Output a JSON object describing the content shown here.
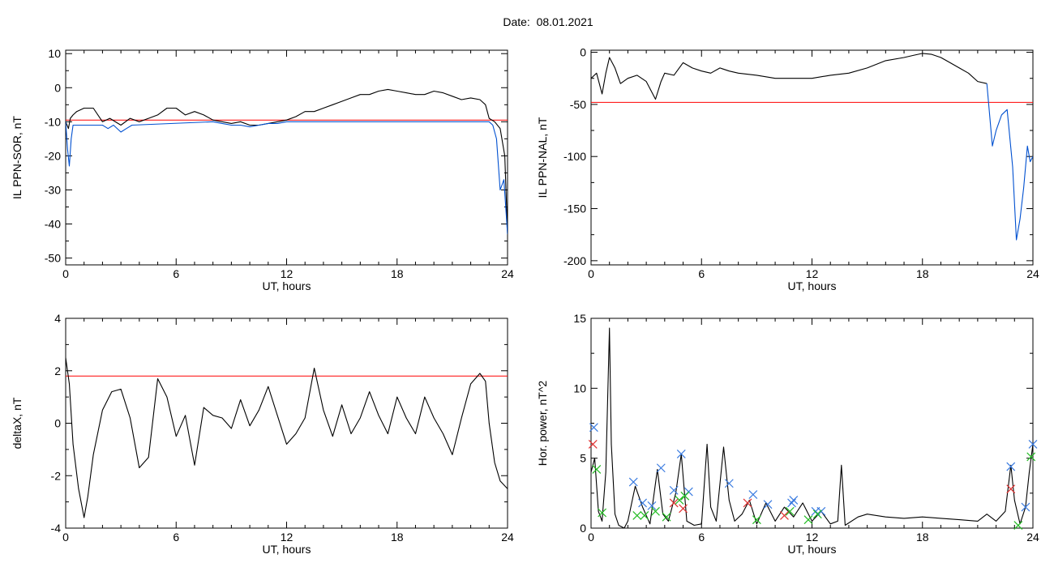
{
  "figure": {
    "title": "Date:  08.01.2021"
  },
  "chart_data": [
    {
      "type": "line",
      "xlabel": "UT, hours",
      "ylabel": "IL PPN-SOR, nT",
      "xlim": [
        0,
        24
      ],
      "ylim": [
        -52,
        11
      ],
      "xticks": [
        0,
        6,
        12,
        18,
        24
      ],
      "yticks": [
        10,
        0,
        -10,
        -20,
        -30,
        -40,
        -50
      ],
      "threshold": {
        "value": -9.5,
        "color": "#ff0000"
      },
      "series": [
        {
          "color": "#000000",
          "x": [
            0,
            0.15,
            0.25,
            0.4,
            0.6,
            1.0,
            1.5,
            2.0,
            2.4,
            3.0,
            3.5,
            4.0,
            4.5,
            5.0,
            5.5,
            6.0,
            6.5,
            7.0,
            7.5,
            8.0,
            8.5,
            9.0,
            9.5,
            10.0,
            10.5,
            11.0,
            11.5,
            12.0,
            12.5,
            13.0,
            13.5,
            14.0,
            14.5,
            15.0,
            15.5,
            16.0,
            16.5,
            17.0,
            17.5,
            18.0,
            18.5,
            19.0,
            19.5,
            20.0,
            20.5,
            21.0,
            21.5,
            22.0,
            22.5,
            22.8,
            23.0,
            23.3,
            23.6,
            23.85,
            24.0
          ],
          "y": [
            -10,
            -12,
            -9,
            -8,
            -7,
            -6,
            -6,
            -10,
            -9,
            -11,
            -9,
            -10,
            -9,
            -8,
            -6,
            -6,
            -8,
            -7,
            -8,
            -9.5,
            -10,
            -10.5,
            -10,
            -11,
            -11,
            -10.5,
            -10,
            -9.5,
            -8.5,
            -7,
            -7,
            -6,
            -5,
            -4,
            -3,
            -2,
            -2,
            -1,
            -0.5,
            -1,
            -1.5,
            -2,
            -2,
            -1,
            -1.5,
            -2.5,
            -3.5,
            -3,
            -3.5,
            -5,
            -9,
            -10,
            -12,
            -20,
            -43
          ]
        },
        {
          "color": "#0050d0",
          "x": [
            0,
            0.1,
            0.2,
            0.3,
            0.4,
            2.0,
            2.3,
            2.6,
            3.0,
            3.3,
            3.6,
            8.0,
            8.5,
            9.0,
            9.5,
            10.0,
            10.5,
            11.0,
            11.5,
            12.0,
            12.5,
            23.0,
            23.2,
            23.4,
            23.6,
            23.8,
            24.0
          ],
          "y": [
            -10,
            -18,
            -23,
            -15,
            -11,
            -11,
            -12,
            -11,
            -13,
            -12,
            -11,
            -10,
            -10.5,
            -11,
            -11,
            -11.5,
            -11,
            -10.5,
            -10.5,
            -10,
            -10,
            -10,
            -11,
            -15,
            -30,
            -27,
            -43
          ]
        }
      ]
    },
    {
      "type": "line",
      "xlabel": "UT, hours",
      "ylabel": "IL PPN-NAL, nT",
      "xlim": [
        0,
        24
      ],
      "ylim": [
        -204,
        2
      ],
      "xticks": [
        0,
        6,
        12,
        18,
        24
      ],
      "yticks": [
        0,
        -50,
        -100,
        -150,
        -200
      ],
      "threshold": {
        "value": -48,
        "color": "#ff0000"
      },
      "series": [
        {
          "color": "#000000",
          "x": [
            0,
            0.3,
            0.6,
            0.8,
            1.0,
            1.3,
            1.6,
            2.0,
            2.5,
            3.0,
            3.5,
            3.8,
            4.0,
            4.5,
            5.0,
            5.5,
            6.0,
            6.5,
            7.0,
            7.5,
            8.0,
            9.0,
            10.0,
            11.0,
            12.0,
            13.0,
            14.0,
            15.0,
            16.0,
            17.0,
            17.5,
            18.0,
            18.5,
            19.0,
            19.5,
            20.0,
            20.5,
            21.0,
            21.5
          ],
          "y": [
            -25,
            -20,
            -40,
            -20,
            -5,
            -15,
            -30,
            -25,
            -22,
            -28,
            -45,
            -28,
            -20,
            -22,
            -10,
            -15,
            -18,
            -20,
            -15,
            -18,
            -20,
            -22,
            -25,
            -25,
            -25,
            -22,
            -20,
            -15,
            -8,
            -5,
            -3,
            -1,
            -2,
            -5,
            -10,
            -15,
            -20,
            -28,
            -30
          ]
        },
        {
          "color": "#0050d0",
          "x": [
            21.5,
            21.8,
            22.0,
            22.3,
            22.6,
            22.9,
            23.1,
            23.3,
            23.5,
            23.7,
            23.85,
            24.0
          ],
          "y": [
            -30,
            -90,
            -75,
            -60,
            -55,
            -110,
            -180,
            -160,
            -130,
            -90,
            -105,
            -100
          ]
        }
      ]
    },
    {
      "type": "line",
      "xlabel": "UT, hours",
      "ylabel": "deltaX, nT",
      "xlim": [
        0,
        24
      ],
      "ylim": [
        -4,
        4
      ],
      "xticks": [
        0,
        6,
        12,
        18,
        24
      ],
      "yticks": [
        4,
        2,
        0,
        -2,
        -4
      ],
      "threshold": {
        "value": 1.8,
        "color": "#ff0000"
      },
      "series": [
        {
          "color": "#000000",
          "x": [
            0,
            0.2,
            0.4,
            0.7,
            1.0,
            1.2,
            1.5,
            2.0,
            2.5,
            3.0,
            3.5,
            4.0,
            4.5,
            5.0,
            5.5,
            6.0,
            6.5,
            7.0,
            7.5,
            8.0,
            8.5,
            9.0,
            9.5,
            10.0,
            10.5,
            11.0,
            11.5,
            12.0,
            12.5,
            13.0,
            13.5,
            14.0,
            14.5,
            15.0,
            15.5,
            16.0,
            16.5,
            17.0,
            17.5,
            18.0,
            18.5,
            19.0,
            19.5,
            20.0,
            20.5,
            21.0,
            21.5,
            22.0,
            22.5,
            22.8,
            23.0,
            23.3,
            23.6,
            24.0
          ],
          "y": [
            2.5,
            1.5,
            -0.8,
            -2.5,
            -3.6,
            -2.8,
            -1.2,
            0.5,
            1.2,
            1.3,
            0.2,
            -1.7,
            -1.3,
            1.7,
            1.0,
            -0.5,
            0.3,
            -1.6,
            0.6,
            0.3,
            0.2,
            -0.2,
            0.9,
            -0.1,
            0.5,
            1.4,
            0.3,
            -0.8,
            -0.4,
            0.2,
            2.1,
            0.5,
            -0.5,
            0.7,
            -0.4,
            0.2,
            1.2,
            0.3,
            -0.4,
            1.0,
            0.2,
            -0.4,
            1.0,
            0.2,
            -0.4,
            -1.2,
            0.2,
            1.5,
            1.9,
            1.6,
            0.0,
            -1.5,
            -2.2,
            -2.5
          ]
        }
      ]
    },
    {
      "type": "line",
      "xlabel": "UT, hours",
      "ylabel": "Hor. power, nT^2",
      "xlim": [
        0,
        24
      ],
      "ylim": [
        0,
        15
      ],
      "xticks": [
        0,
        6,
        12,
        18,
        24
      ],
      "yticks": [
        15,
        10,
        5,
        0
      ],
      "series": [
        {
          "color": "#000000",
          "x": [
            0,
            0.2,
            0.4,
            0.6,
            0.8,
            1.0,
            1.1,
            1.3,
            1.5,
            1.8,
            2.0,
            2.4,
            2.8,
            3.2,
            3.6,
            3.9,
            4.2,
            4.6,
            4.9,
            5.2,
            5.6,
            6.0,
            6.3,
            6.5,
            6.8,
            7.2,
            7.5,
            7.8,
            8.2,
            8.6,
            9.0,
            9.5,
            10.0,
            10.5,
            11.0,
            11.5,
            12.0,
            12.5,
            13.0,
            13.4,
            13.6,
            13.8,
            14.5,
            15.0,
            16.0,
            17.0,
            18.0,
            19.0,
            20.0,
            21.0,
            21.5,
            22.0,
            22.5,
            22.8,
            23.0,
            23.3,
            23.6,
            23.8,
            24.0
          ],
          "y": [
            4,
            5,
            1.2,
            0.5,
            4,
            14.3,
            6,
            1.0,
            0.2,
            0.0,
            0.5,
            3.0,
            1.5,
            0.3,
            4.2,
            1.0,
            0.5,
            2.5,
            5.3,
            0.5,
            0.2,
            0.3,
            6.0,
            1.5,
            0.5,
            5.8,
            2.0,
            0.5,
            1.0,
            2.0,
            0.3,
            1.8,
            0.5,
            1.5,
            0.8,
            1.8,
            0.5,
            1.2,
            0.3,
            0.5,
            4.5,
            0.2,
            0.8,
            1.0,
            0.8,
            0.7,
            0.8,
            0.7,
            0.6,
            0.5,
            1.0,
            0.5,
            1.2,
            4.5,
            2.0,
            0.3,
            1.5,
            4.0,
            6.0
          ]
        }
      ],
      "markers": [
        {
          "name": "blue",
          "color": "#3a7be0",
          "symbol": "x",
          "x": [
            0.15,
            2.3,
            2.8,
            3.3,
            3.8,
            4.5,
            4.9,
            5.3,
            7.5,
            8.8,
            9.6,
            10.9,
            11.0,
            12.2,
            12.5,
            22.8,
            23.6,
            24.0
          ],
          "y": [
            7.2,
            3.3,
            1.8,
            1.6,
            4.3,
            2.7,
            5.3,
            2.6,
            3.2,
            2.4,
            1.7,
            1.8,
            2.0,
            1.2,
            1.2,
            4.4,
            1.5,
            6.0
          ]
        },
        {
          "name": "red",
          "color": "#e03030",
          "symbol": "x",
          "x": [
            0.1,
            4.5,
            5.0,
            8.5,
            10.5,
            22.8
          ],
          "y": [
            6.0,
            1.8,
            1.4,
            1.8,
            0.9,
            2.8
          ]
        },
        {
          "name": "green",
          "color": "#22bb22",
          "symbol": "x",
          "x": [
            0.3,
            0.6,
            2.5,
            2.9,
            3.5,
            4.1,
            4.8,
            5.1,
            9.0,
            10.8,
            11.8,
            12.3,
            23.2,
            23.9
          ],
          "y": [
            4.2,
            1.1,
            0.9,
            0.9,
            1.2,
            0.8,
            2.0,
            2.3,
            0.6,
            1.2,
            0.6,
            1.0,
            0.2,
            5.1
          ]
        }
      ]
    }
  ]
}
